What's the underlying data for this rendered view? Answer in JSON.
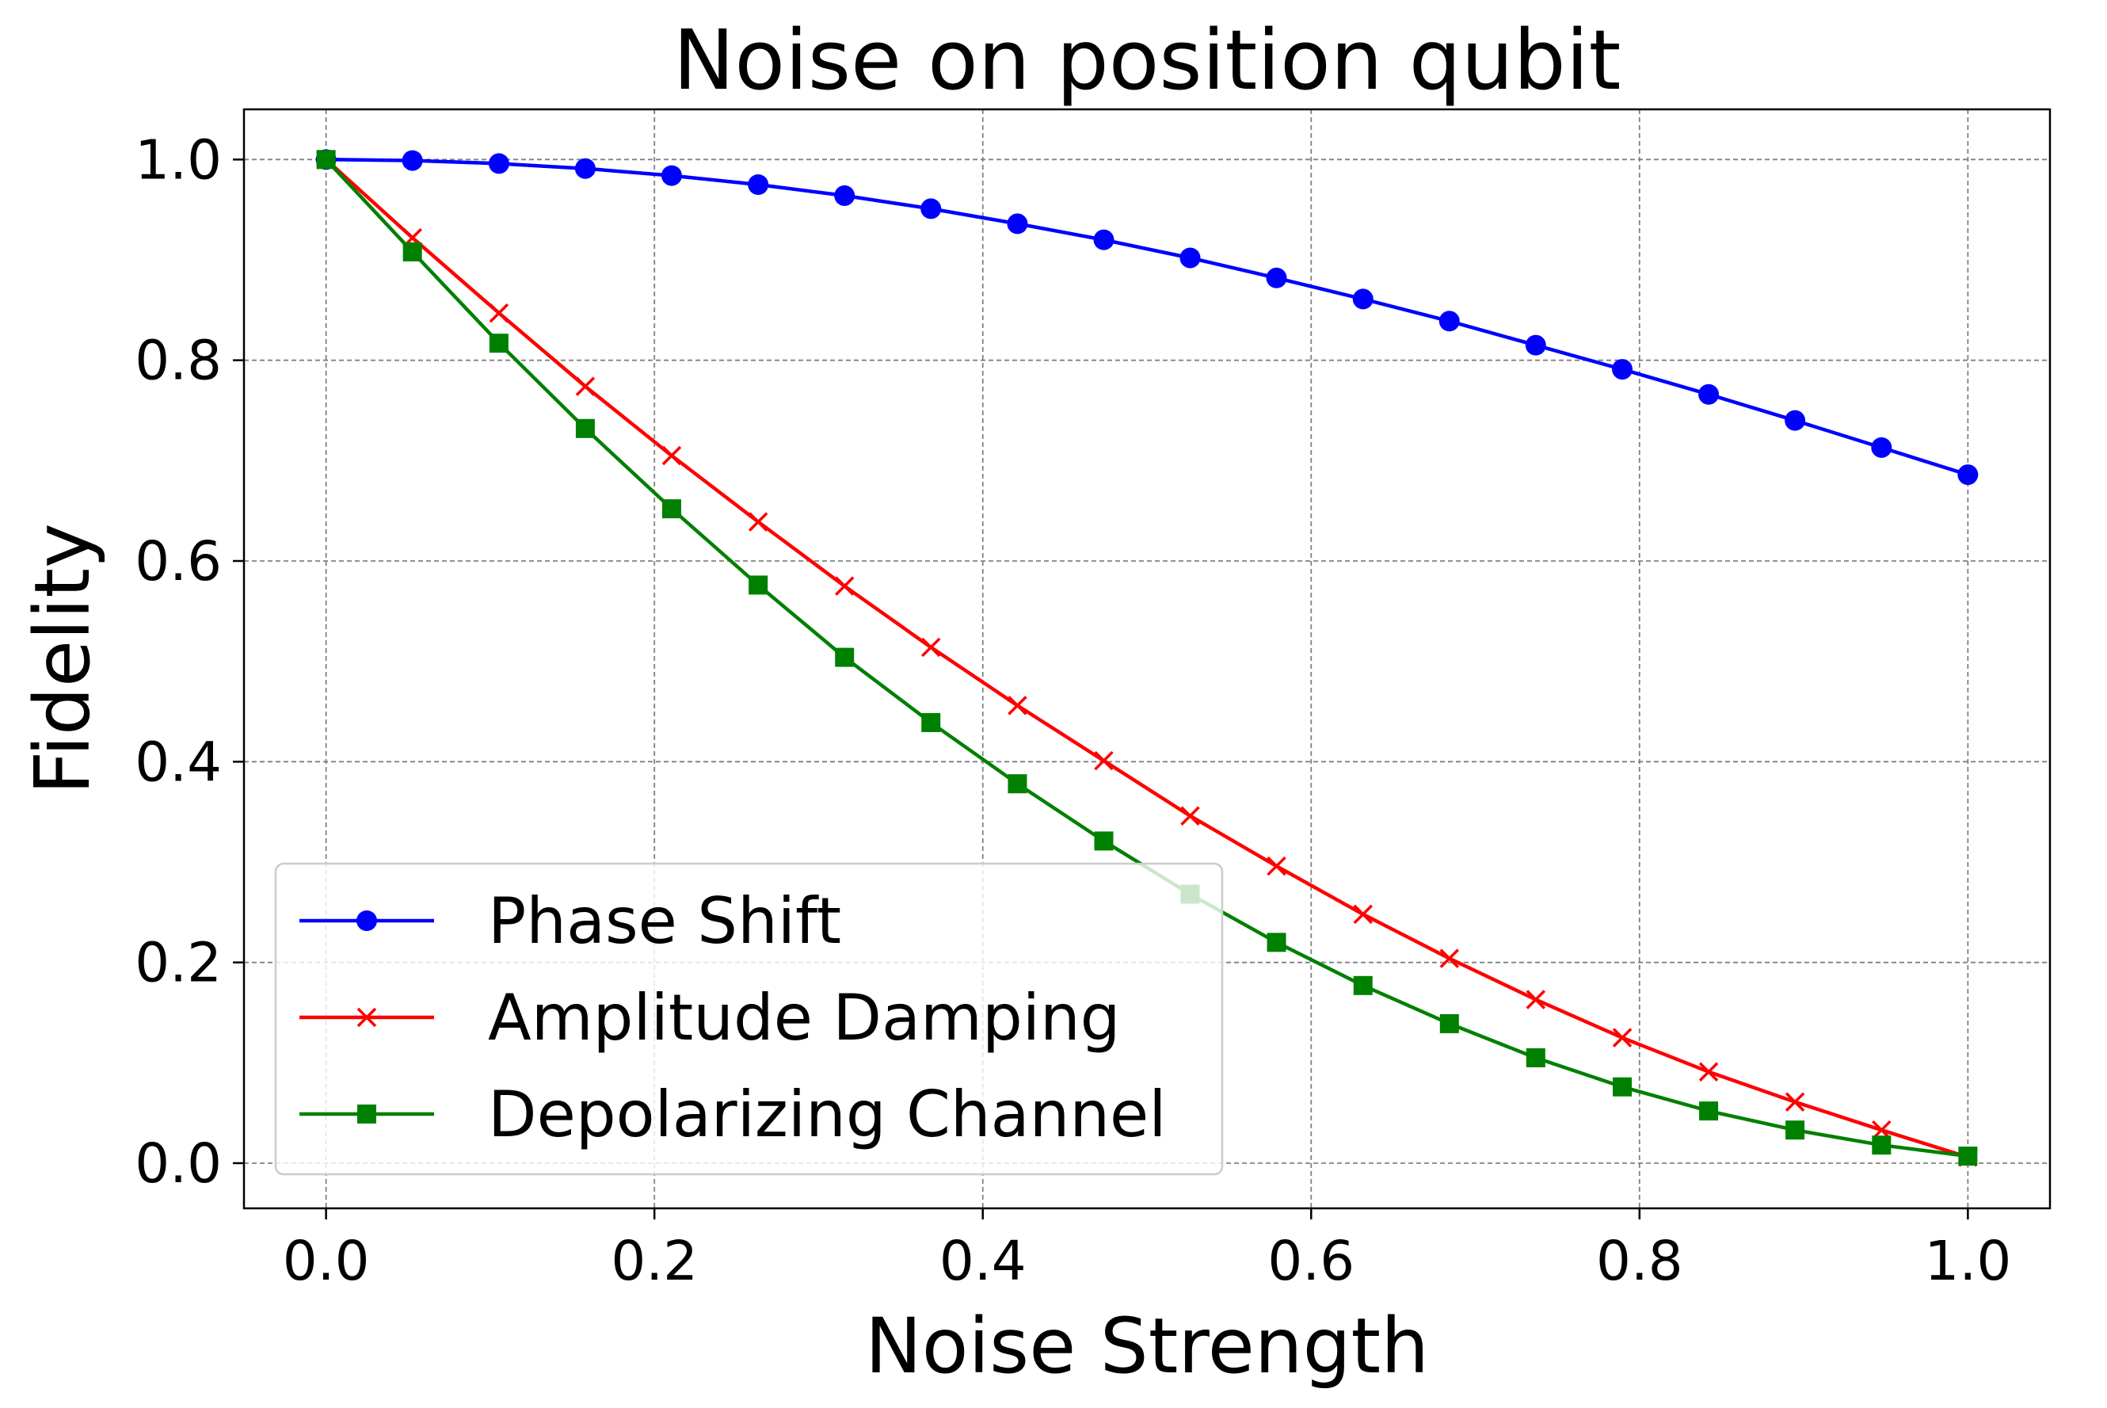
{
  "chart_data": {
    "type": "line",
    "title": "Noise on position qubit",
    "xlabel": "Noise Strength",
    "ylabel": "Fidelity",
    "xlim": [
      -0.05,
      1.05
    ],
    "ylim": [
      -0.045,
      1.05
    ],
    "xticks": [
      "0.0",
      "0.2",
      "0.4",
      "0.6",
      "0.8",
      "1.0"
    ],
    "yticks": [
      "0.0",
      "0.2",
      "0.4",
      "0.6",
      "0.8",
      "1.0"
    ],
    "grid": true,
    "legend_position": "lower-left",
    "x": [
      0.0,
      0.0526,
      0.1053,
      0.1579,
      0.2105,
      0.2632,
      0.3158,
      0.3684,
      0.4211,
      0.4737,
      0.5263,
      0.5789,
      0.6316,
      0.6842,
      0.7368,
      0.7895,
      0.8421,
      0.8947,
      0.9474,
      1.0
    ],
    "series": [
      {
        "name": "Phase Shift",
        "color": "#0000ff",
        "marker": "circle",
        "values": [
          1.0,
          0.999,
          0.996,
          0.991,
          0.984,
          0.975,
          0.964,
          0.951,
          0.936,
          0.92,
          0.902,
          0.882,
          0.861,
          0.839,
          0.815,
          0.791,
          0.766,
          0.74,
          0.713,
          0.686
        ]
      },
      {
        "name": "Amplitude Damping",
        "color": "#ff0000",
        "marker": "x",
        "values": [
          1.0,
          0.922,
          0.847,
          0.774,
          0.705,
          0.639,
          0.575,
          0.514,
          0.456,
          0.401,
          0.346,
          0.296,
          0.248,
          0.204,
          0.163,
          0.125,
          0.091,
          0.061,
          0.033,
          0.006
        ]
      },
      {
        "name": "Depolarizing Channel",
        "color": "#008000",
        "marker": "square",
        "values": [
          1.0,
          0.908,
          0.817,
          0.732,
          0.652,
          0.576,
          0.504,
          0.439,
          0.378,
          0.321,
          0.268,
          0.22,
          0.177,
          0.139,
          0.105,
          0.076,
          0.052,
          0.033,
          0.018,
          0.007
        ]
      }
    ]
  }
}
